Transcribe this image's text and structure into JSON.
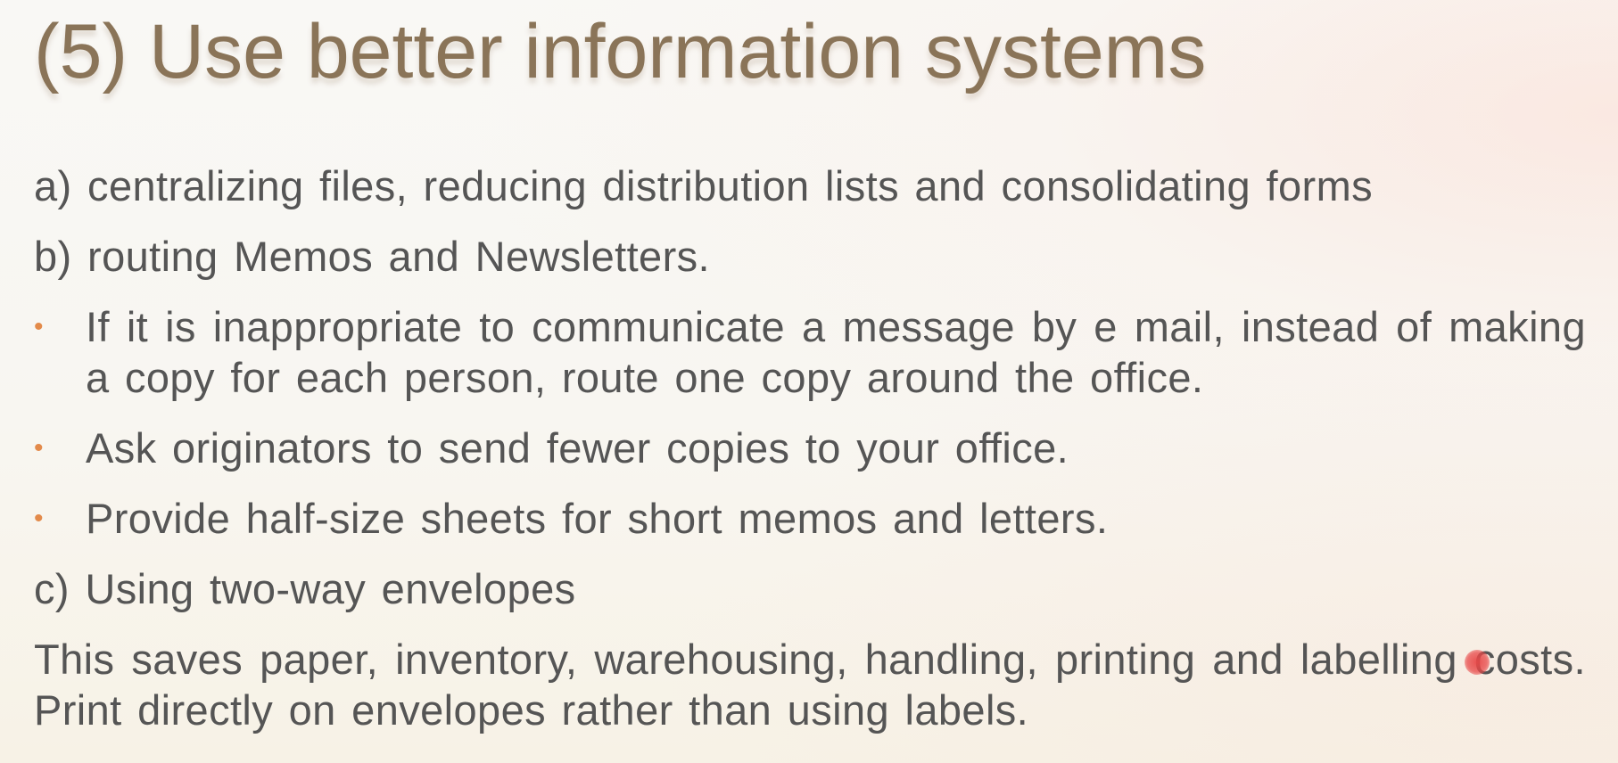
{
  "slide": {
    "title": "(5) Use better information systems",
    "items": {
      "a": "a) centralizing files, reducing distribution lists and consolidating forms",
      "b": "b) routing Memos and Newsletters.",
      "bullets": [
        "If it is inappropriate to communicate a message by e mail, instead of making a copy for each person, route one copy around the office.",
        "Ask originators to send fewer copies to your office.",
        "Provide half-size sheets for short memos and letters."
      ],
      "c": "c) Using two-way envelopes",
      "closing": "This saves paper, inventory, warehousing, handling, printing and labelling costs. Print directly on envelopes rather than using labels."
    }
  },
  "colors": {
    "title": "#8a7458",
    "body_text": "#555555",
    "bullet": "#e38a4a",
    "pointer": "#e84848"
  },
  "icons": {
    "bullet": "orange-dot-bullet-icon",
    "pointer": "laser-pointer-icon"
  }
}
